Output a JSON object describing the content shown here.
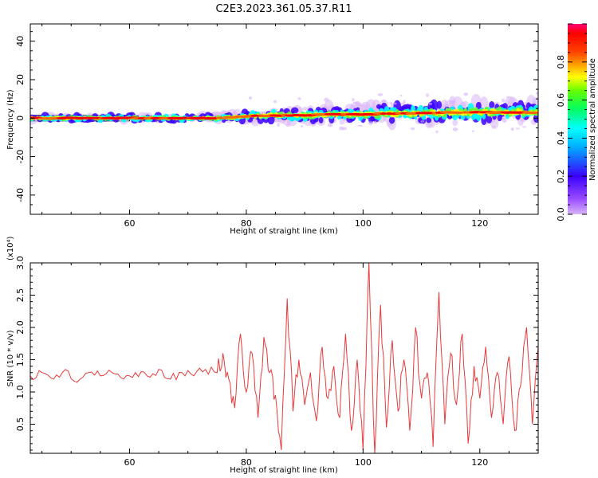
{
  "figure_title": "C2E3.2023.361.05.37.R11",
  "chart_data": [
    {
      "type": "heatmap",
      "xlabel": "Height of straight line (km)",
      "ylabel": "Frequency (Hz)",
      "xlim": [
        43,
        130
      ],
      "ylim": [
        -50,
        49
      ],
      "xticks": [
        60,
        80,
        100,
        120
      ],
      "yticks": [
        -40,
        -20,
        0,
        20,
        40
      ],
      "colorbar": {
        "label": "Normalized spectral amplitude",
        "range": [
          0,
          1
        ],
        "ticks": [
          "0.0",
          "0.2",
          "0.4",
          "0.6",
          "0.8"
        ],
        "colors": [
          "#d8b4f8",
          "#3b00ff",
          "#00ffff",
          "#00ff00",
          "#ffff00",
          "#ff0000",
          "#ff0066"
        ]
      },
      "ridge": {
        "x": [
          43,
          50,
          60,
          70,
          75,
          80,
          85,
          90,
          95,
          100,
          105,
          110,
          115,
          120,
          125,
          130
        ],
        "freq": [
          0,
          0,
          0,
          0,
          0,
          1,
          1.5,
          1.5,
          2,
          2,
          2.5,
          2.5,
          3,
          3,
          3,
          3
        ]
      }
    },
    {
      "type": "line",
      "xlabel": "Height of straight line (km)",
      "ylabel": "SNR (10 * v/v)",
      "scale_label": "(x10⁴)",
      "xlim": [
        43,
        130
      ],
      "ylim": [
        0.05,
        3.0
      ],
      "xticks": [
        60,
        80,
        100,
        120
      ],
      "yticks": [
        "0.5",
        "1.0",
        "1.5",
        "2.0",
        "2.5",
        "3.0"
      ],
      "color": "#e8393a",
      "series": [
        {
          "x": [
            43,
            45,
            47,
            49,
            51,
            53,
            55,
            57,
            59,
            61,
            63,
            65,
            67,
            69,
            71,
            73,
            75,
            76,
            77,
            78,
            79,
            80,
            81,
            82,
            83,
            84,
            85,
            86,
            87,
            88,
            89,
            90,
            91,
            92,
            93,
            94,
            95,
            96,
            97,
            98,
            99,
            100,
            101,
            102,
            103,
            104,
            105,
            106,
            107,
            108,
            109,
            110,
            111,
            112,
            113,
            114,
            115,
            116,
            117,
            118,
            119,
            120,
            121,
            122,
            123,
            124,
            125,
            126,
            127,
            128,
            129,
            130
          ],
          "values": [
            1.25,
            1.3,
            1.2,
            1.35,
            1.15,
            1.3,
            1.25,
            1.3,
            1.2,
            1.3,
            1.25,
            1.35,
            1.2,
            1.3,
            1.25,
            1.35,
            1.3,
            1.6,
            1.2,
            0.75,
            1.9,
            1.0,
            1.6,
            0.6,
            1.85,
            1.3,
            0.95,
            0.1,
            2.45,
            0.7,
            1.5,
            0.8,
            1.3,
            0.55,
            1.7,
            0.9,
            1.4,
            0.6,
            1.9,
            0.4,
            1.5,
            0.1,
            3.0,
            0.05,
            2.35,
            0.45,
            1.8,
            0.7,
            1.5,
            0.4,
            2.0,
            0.9,
            1.3,
            0.15,
            2.55,
            0.5,
            1.6,
            0.8,
            1.9,
            0.2,
            1.4,
            0.9,
            1.7,
            0.6,
            1.3,
            0.5,
            1.55,
            0.4,
            1.1,
            2.0,
            0.5,
            1.7
          ]
        }
      ]
    }
  ]
}
